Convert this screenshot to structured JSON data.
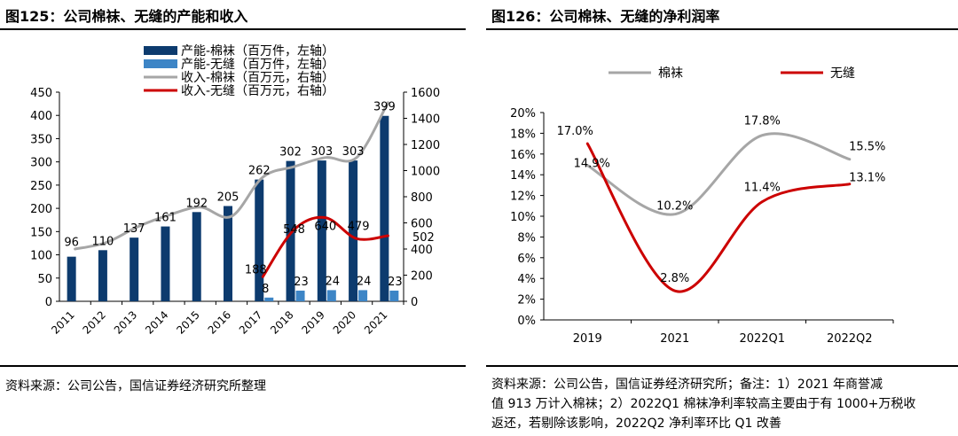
{
  "panels": [
    {
      "title": "图125：公司棉袜、无缝的产能和收入",
      "source": "资料来源：公司公告，国信证券经济研究所整理"
    },
    {
      "title": "图126：公司棉袜、无缝的净利润率",
      "source_lines": [
        "资料来源：公司公告，国信证券经济研究所；备注：1）2021 年商誉减",
        "值 913 万计入棉袜；2）2022Q1 棉袜净利率较高主要由于有 1000+万税收",
        "返还，若剔除该影响，2022Q2 净利率环比 Q1 改善"
      ]
    }
  ],
  "chart_data": [
    {
      "type": "bar+line",
      "title": "图125：公司棉袜、无缝的产能和收入",
      "categories": [
        "2011",
        "2012",
        "2013",
        "2014",
        "2015",
        "2016",
        "2017",
        "2018",
        "2019",
        "2020",
        "2021"
      ],
      "y_left": {
        "min": 0,
        "max": 450,
        "step": 50,
        "ticks": [
          "0",
          "50",
          "100",
          "150",
          "200",
          "250",
          "300",
          "350",
          "400",
          "450"
        ]
      },
      "y_right": {
        "min": 0,
        "max": 1600,
        "step": 200,
        "ticks": [
          "0",
          "200",
          "400",
          "600",
          "800",
          "1000",
          "1200",
          "1400",
          "1600"
        ]
      },
      "series": [
        {
          "name": "产能-棉袜（百万件，左轴）",
          "kind": "bar",
          "axis": "left",
          "color": "#0d3b6e",
          "values": [
            96,
            110,
            137,
            161,
            192,
            205,
            262,
            302,
            303,
            303,
            399
          ],
          "labels": [
            "96",
            "110",
            "137",
            "161",
            "192",
            "205",
            "262",
            "302",
            "303",
            "303",
            "399"
          ]
        },
        {
          "name": "产能-无缝（百万件，左轴）",
          "kind": "bar",
          "axis": "left",
          "color": "#3d85c6",
          "values": [
            null,
            null,
            null,
            null,
            null,
            null,
            8,
            23,
            24,
            24,
            23
          ],
          "labels": [
            "",
            "",
            "",
            "",
            "",
            "",
            "8",
            "23",
            "24",
            "24",
            "23"
          ]
        },
        {
          "name": "收入-棉袜（百万元，右轴）",
          "kind": "line",
          "axis": "right",
          "color": "#a6a6a6",
          "values": [
            400,
            450,
            570,
            660,
            720,
            650,
            950,
            1030,
            1100,
            1100,
            1520
          ]
        },
        {
          "name": "收入-无缝（百万元，右轴）",
          "kind": "line",
          "axis": "right",
          "color": "#cc0000",
          "values": [
            null,
            null,
            null,
            null,
            null,
            null,
            188,
            548,
            640,
            479,
            502
          ],
          "labels": [
            "",
            "",
            "",
            "",
            "",
            "",
            "188",
            "548",
            "640",
            "479",
            "502"
          ]
        }
      ]
    },
    {
      "type": "line",
      "title": "图126：公司棉袜、无缝的净利润率",
      "categories": [
        "2019",
        "2021",
        "2022Q1",
        "2022Q2"
      ],
      "y": {
        "min": 0,
        "max": 20,
        "step": 2,
        "ticks": [
          "0%",
          "2%",
          "4%",
          "6%",
          "8%",
          "10%",
          "12%",
          "14%",
          "16%",
          "18%",
          "20%"
        ]
      },
      "series": [
        {
          "name": "棉袜",
          "color": "#a6a6a6",
          "values": [
            14.9,
            10.2,
            17.8,
            15.5
          ],
          "labels": [
            "14.9%",
            "10.2%",
            "17.8%",
            "15.5%"
          ]
        },
        {
          "name": "无缝",
          "color": "#cc0000",
          "values": [
            17.0,
            2.8,
            11.4,
            13.1
          ],
          "labels": [
            "17.0%",
            "2.8%",
            "11.4%",
            "13.1%"
          ]
        }
      ]
    }
  ]
}
